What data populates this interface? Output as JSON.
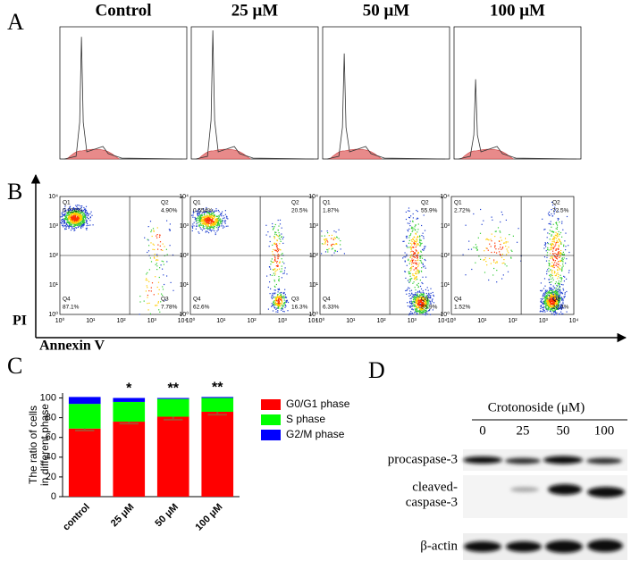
{
  "panel_labels": [
    "A",
    "B",
    "C",
    "D"
  ],
  "panel_a": {
    "columns": [
      "Control",
      "25 μM",
      "50 μM",
      "100 μM"
    ]
  },
  "panel_b": {
    "y_label": "PI",
    "x_label": "Annexin V",
    "tick_labels": [
      "10⁰",
      "10¹",
      "10²",
      "10³",
      "10⁴"
    ],
    "plots": [
      {
        "quadrants": [
          {
            "name": "Q1",
            "value": "0.224%"
          },
          {
            "name": "Q2",
            "value": "4.90%"
          },
          {
            "name": "Q3",
            "value": "7.78%"
          },
          {
            "name": "Q4",
            "value": "87.1%"
          }
        ]
      },
      {
        "quadrants": [
          {
            "name": "Q1",
            "value": "0.554%"
          },
          {
            "name": "Q2",
            "value": "20.5%"
          },
          {
            "name": "Q3",
            "value": "16.3%"
          },
          {
            "name": "Q4",
            "value": "62.6%"
          }
        ]
      },
      {
        "quadrants": [
          {
            "name": "Q1",
            "value": "1.87%"
          },
          {
            "name": "Q2",
            "value": "55.9%"
          },
          {
            "name": "Q3",
            "value": "35.9%"
          },
          {
            "name": "Q4",
            "value": "6.33%"
          }
        ]
      },
      {
        "quadrants": [
          {
            "name": "Q1",
            "value": "2.72%"
          },
          {
            "name": "Q2",
            "value": "72.5%"
          },
          {
            "name": "Q3",
            "value": "23.3%"
          },
          {
            "name": "Q4",
            "value": "1.52%"
          }
        ]
      }
    ]
  },
  "chart_data": {
    "type": "stacked_bar",
    "y_label": [
      "The ratio of cells",
      "in different phase"
    ],
    "categories": [
      "control",
      "25 μM",
      "50 μM",
      "100 μM"
    ],
    "series": [
      {
        "name": "G0/G1 phase",
        "color": "#ff0000",
        "values": [
          69,
          76,
          81,
          86
        ],
        "errors": [
          2,
          2,
          3,
          3
        ],
        "error_color": "#b5472a"
      },
      {
        "name": "S phase",
        "color": "#00ff00",
        "values": [
          25,
          20,
          18,
          14
        ]
      },
      {
        "name": "G2/M phase",
        "color": "#0000ff",
        "values": [
          7,
          4,
          1,
          1
        ]
      }
    ],
    "significance": [
      null,
      "*",
      "**",
      "**"
    ],
    "ylim": [
      0,
      105
    ],
    "yticks": [
      0,
      20,
      40,
      60,
      80,
      100
    ]
  },
  "panel_d": {
    "title": "Crotonoside (μM)",
    "lanes": [
      "0",
      "25",
      "50",
      "100"
    ],
    "rows": [
      "procaspase-3",
      "cleaved-",
      "caspase-3",
      "β-actin"
    ]
  }
}
